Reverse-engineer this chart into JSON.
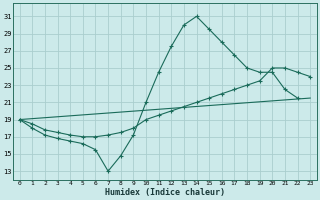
{
  "xlabel": "Humidex (Indice chaleur)",
  "background_color": "#cceaea",
  "grid_color": "#aacece",
  "line_color": "#1a6b5a",
  "xlim": [
    -0.5,
    23.5
  ],
  "ylim": [
    12,
    32.5
  ],
  "yticks": [
    13,
    15,
    17,
    19,
    21,
    23,
    25,
    27,
    29,
    31
  ],
  "xticks": [
    0,
    1,
    2,
    3,
    4,
    5,
    6,
    7,
    8,
    9,
    10,
    11,
    12,
    13,
    14,
    15,
    16,
    17,
    18,
    19,
    20,
    21,
    22,
    23
  ],
  "line1_x": [
    0,
    1,
    2,
    3,
    4,
    5,
    6,
    7,
    8,
    9,
    10,
    11,
    12,
    13,
    14,
    15,
    16,
    17,
    18,
    19,
    20,
    21,
    22
  ],
  "line1_y": [
    19.0,
    18.0,
    17.2,
    16.8,
    16.5,
    16.2,
    15.5,
    13.0,
    14.8,
    17.2,
    21.0,
    24.5,
    27.5,
    30.0,
    31.0,
    29.5,
    28.0,
    26.5,
    25.0,
    24.5,
    24.5,
    22.5,
    21.5
  ],
  "line2_x": [
    0,
    1,
    2,
    3,
    4,
    5,
    6,
    7,
    8,
    9,
    10,
    11,
    12,
    13,
    14,
    15,
    16,
    17,
    18,
    19,
    20,
    21,
    22,
    23
  ],
  "line2_y": [
    19.0,
    18.5,
    17.8,
    17.5,
    17.2,
    17.0,
    17.0,
    17.2,
    17.5,
    18.0,
    19.0,
    19.5,
    20.0,
    20.5,
    21.0,
    21.5,
    22.0,
    22.5,
    23.0,
    23.5,
    25.0,
    25.0,
    24.5,
    24.0
  ],
  "line3_x": [
    0,
    23
  ],
  "line3_y": [
    19.0,
    21.5
  ]
}
